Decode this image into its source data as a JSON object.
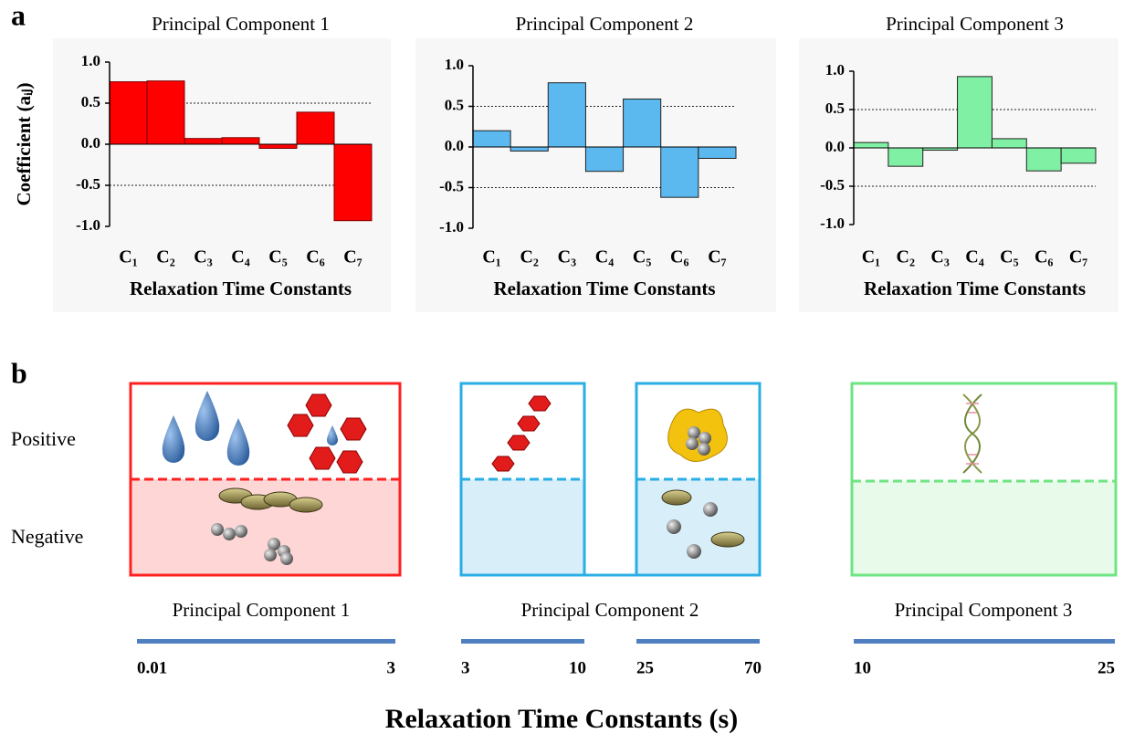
{
  "panel_labels": [
    "a",
    "b"
  ],
  "chart_data": [
    {
      "type": "bar",
      "title": "Principal Component 1",
      "x_label": "Relaxation Time Constants",
      "y_label": "Coefficient (aᵢⱼ)",
      "categories": [
        "C₁",
        "C₂",
        "C₃",
        "C₄",
        "C₅",
        "C₆",
        "C₇"
      ],
      "values": [
        0.76,
        0.77,
        0.07,
        0.08,
        -0.05,
        0.39,
        -0.93
      ],
      "color": "#ff0000",
      "ylim": [
        -1,
        1
      ],
      "yticks": [
        {
          "value": -1,
          "label": "-1.0"
        },
        -0.5,
        {
          "value": 0,
          "label": "0.0"
        },
        0.5,
        {
          "value": 1,
          "label": "1.0"
        }
      ],
      "ref_lines": [
        0.5,
        -0.5
      ]
    },
    {
      "type": "bar",
      "title": "Principal Component 2",
      "x_label": "Relaxation Time Constants",
      "categories": [
        "C₁",
        "C₂",
        "C₃",
        "C₄",
        "C₅",
        "C₆",
        "C₇"
      ],
      "values": [
        0.2,
        -0.05,
        0.79,
        -0.3,
        0.59,
        -0.62,
        -0.14
      ],
      "color": "#5cb9f0",
      "ylim": [
        -1,
        1
      ],
      "yticks": [
        {
          "value": -1,
          "label": "-1.0"
        },
        -0.5,
        {
          "value": 0,
          "label": "0.0"
        },
        0.5,
        {
          "value": 1,
          "label": "1.0"
        }
      ],
      "ref_lines": [
        0.5,
        -0.5
      ]
    },
    {
      "type": "bar",
      "title": "Principal Component 3",
      "x_label": "Relaxation Time Constants",
      "categories": [
        "C₁",
        "C₂",
        "C₃",
        "C₄",
        "C₅",
        "C₆",
        "C₇"
      ],
      "values": [
        0.07,
        -0.24,
        -0.03,
        0.93,
        0.12,
        -0.3,
        -0.2
      ],
      "color": "#80f0a4",
      "ylim": [
        -1,
        1
      ],
      "yticks": [
        {
          "value": -1,
          "label": "-1.0"
        },
        -0.5,
        {
          "value": 0,
          "label": "0.0"
        },
        0.5,
        {
          "value": 1,
          "label": "1.0"
        }
      ],
      "ref_lines": [
        0.5,
        -0.5
      ]
    }
  ],
  "diagram": {
    "row_labels": [
      "Positive",
      "Negative"
    ],
    "groups": [
      {
        "label": "Principal Component 1",
        "scale": [
          0.01,
          3
        ]
      },
      {
        "label": "Principal Component 2",
        "scale": [
          3,
          10,
          25,
          70
        ]
      },
      {
        "label": "Principal Component 3",
        "scale": [
          10,
          25
        ]
      }
    ],
    "axis_title": "Relaxation Time Constants (s)"
  }
}
